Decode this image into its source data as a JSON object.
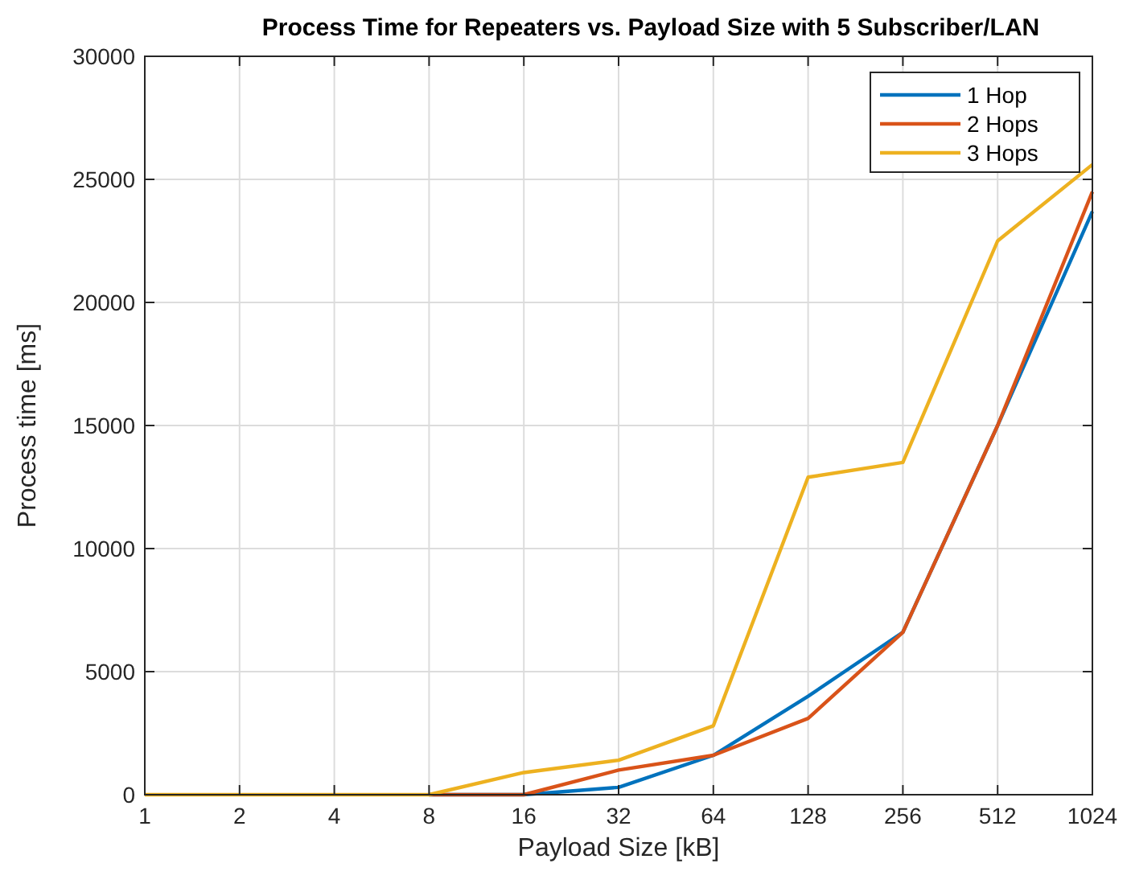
{
  "chart_data": {
    "type": "line",
    "title": "Process Time for Repeaters vs. Payload Size with 5 Subscriber/LAN",
    "xlabel": "Payload Size [kB]",
    "ylabel": "Process time [ms]",
    "x": [
      1,
      2,
      4,
      8,
      16,
      32,
      64,
      128,
      256,
      512,
      1024
    ],
    "series": [
      {
        "name": "1 Hop",
        "color": "#0072bd",
        "values": [
          null,
          null,
          null,
          0,
          0,
          300,
          1600,
          4000,
          6600,
          15000,
          23700
        ]
      },
      {
        "name": "2 Hops",
        "color": "#d95319",
        "values": [
          null,
          null,
          null,
          0,
          0,
          1000,
          1600,
          3100,
          6600,
          15000,
          24500
        ]
      },
      {
        "name": "3 Hops",
        "color": "#edb120",
        "values": [
          0,
          0,
          0,
          0,
          900,
          1400,
          2800,
          12900,
          13500,
          22500,
          25600
        ]
      }
    ],
    "log": "x",
    "xlim": [
      1,
      1024
    ],
    "xticks": [
      1,
      2,
      4,
      8,
      16,
      32,
      64,
      128,
      256,
      512,
      1024
    ],
    "ylim": [
      0,
      30000
    ],
    "yticks": [
      0,
      5000,
      10000,
      15000,
      20000,
      25000,
      30000
    ],
    "grid": true,
    "legend": "top right",
    "line_style": "solid",
    "marker": "none"
  }
}
